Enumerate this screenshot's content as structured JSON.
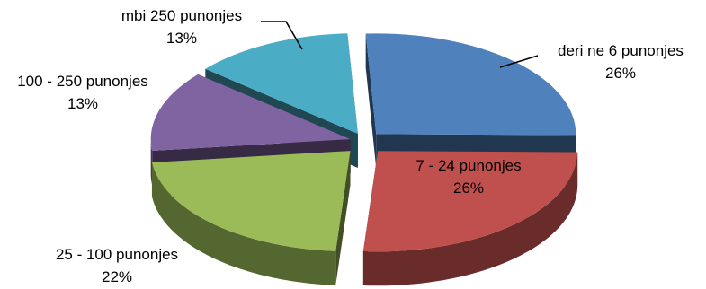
{
  "chart_data": {
    "type": "pie",
    "style": "3d-exploded",
    "title": "",
    "slices": [
      {
        "label": "deri ne 6 punonjes",
        "value": 26,
        "value_label": "26%",
        "color": "#4F81BD"
      },
      {
        "label": "7 - 24 punonjes",
        "value": 26,
        "value_label": "26%",
        "color": "#C0504D"
      },
      {
        "label": "25 - 100 punonjes",
        "value": 22,
        "value_label": "22%",
        "color": "#9BBB59"
      },
      {
        "label": "100 - 250 punonjes",
        "value": 13,
        "value_label": "13%",
        "color": "#8064A2"
      },
      {
        "label": "mbi 250 punonjes",
        "value": 13,
        "value_label": "13%",
        "color": "#4BACC6"
      }
    ],
    "legend": "none",
    "labels_position": "outside-with-leader-lines"
  }
}
